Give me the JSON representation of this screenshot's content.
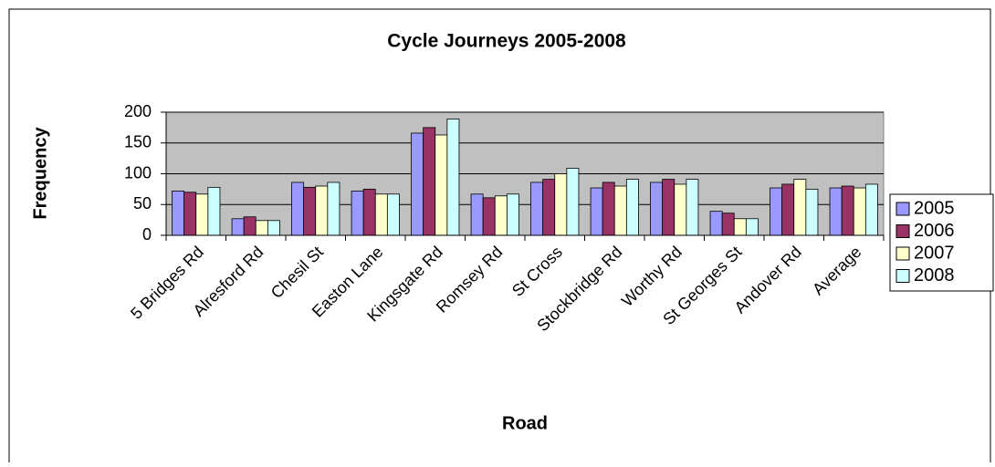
{
  "chart_data": {
    "type": "bar",
    "title": "Cycle Journeys 2005-2008",
    "xlabel": "Road",
    "ylabel": "Frequency",
    "categories": [
      "5 Bridges Rd",
      "Alresford Rd",
      "Chesil St",
      "Easton Lane",
      "Kingsgate Rd",
      "Romsey Rd",
      "St Cross",
      "Stockbridge Rd",
      "Worthy Rd",
      "St Georges St",
      "Andover Rd",
      "Average"
    ],
    "series": [
      {
        "name": "2005",
        "color": "#9999ff",
        "values": [
          72,
          27,
          86,
          72,
          166,
          67,
          86,
          77,
          86,
          39,
          77,
          77
        ]
      },
      {
        "name": "2006",
        "color": "#993366",
        "values": [
          70,
          30,
          78,
          75,
          175,
          61,
          91,
          86,
          91,
          36,
          83,
          80
        ]
      },
      {
        "name": "2007",
        "color": "#ffffcc",
        "values": [
          67,
          24,
          80,
          67,
          163,
          64,
          100,
          80,
          83,
          27,
          91,
          77
        ]
      },
      {
        "name": "2008",
        "color": "#ccffff",
        "values": [
          78,
          24,
          86,
          67,
          189,
          67,
          109,
          91,
          91,
          27,
          75,
          83
        ]
      }
    ],
    "ylim": [
      0,
      200
    ],
    "yticks": [
      0,
      50,
      100,
      150,
      200
    ],
    "grid": true,
    "legend": "right"
  }
}
